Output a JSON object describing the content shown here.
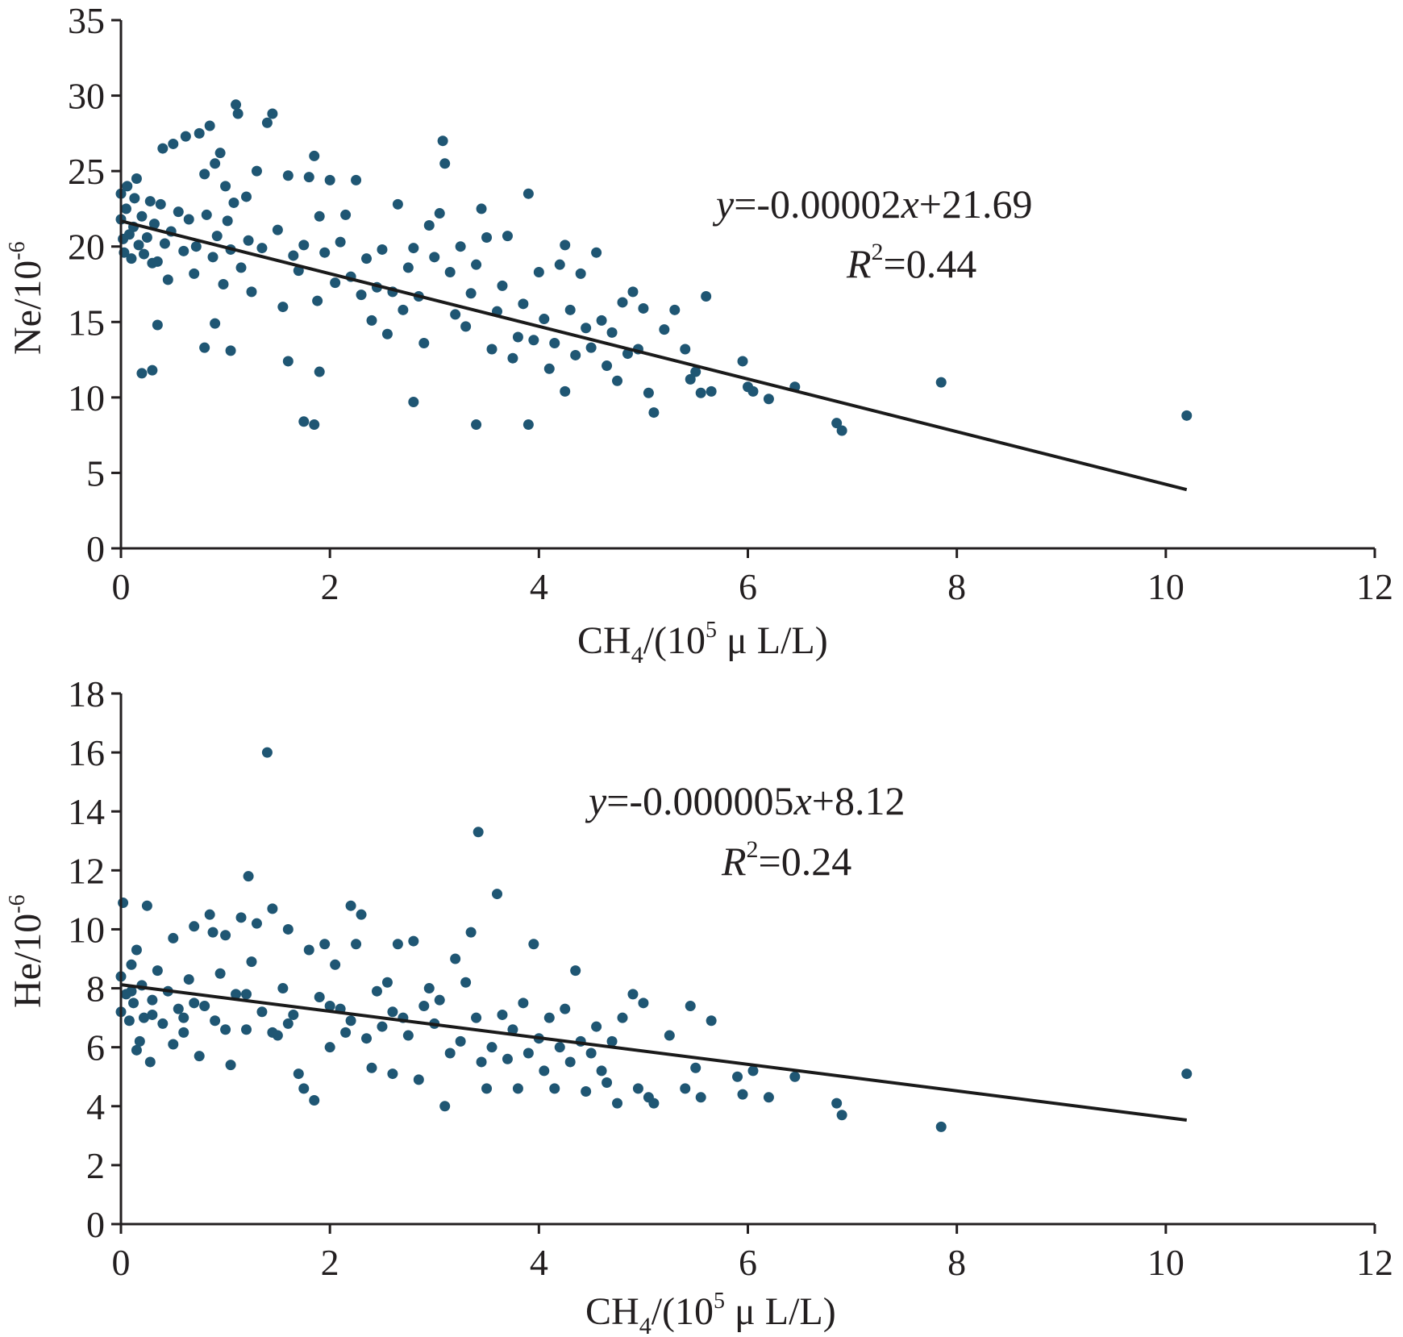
{
  "colors": {
    "points": "#1f5673",
    "axes": "#231f20",
    "fit_line": "#1a1a1a"
  },
  "chart_data": [
    {
      "type": "scatter",
      "xlabel": {
        "main": "CH",
        "sub": "4",
        "mid": "/(10",
        "sup": "5",
        "tail": " μ L/L)"
      },
      "ylabel": {
        "main": "Ne/10",
        "sup": "-6"
      },
      "xlim": [
        0,
        12
      ],
      "ylim": [
        0,
        35
      ],
      "xticks": [
        0,
        2,
        4,
        6,
        8,
        10,
        12
      ],
      "yticks": [
        0,
        5,
        10,
        15,
        20,
        25,
        30,
        35
      ],
      "grid": false,
      "fit": {
        "slope_per_1e5": -1.745,
        "intercept": 21.69,
        "x_end": 10.2
      },
      "equation": {
        "y": "y",
        "eq": "=-0.00002",
        "x": "x",
        "rest": "+21.69"
      },
      "r2": {
        "r": "R",
        "sup": "2",
        "rest": "=0.44"
      },
      "points": [
        [
          0.0,
          23.5
        ],
        [
          0.0,
          21.8
        ],
        [
          0.02,
          20.5
        ],
        [
          0.03,
          19.6
        ],
        [
          0.05,
          22.5
        ],
        [
          0.06,
          24.0
        ],
        [
          0.08,
          20.8
        ],
        [
          0.1,
          19.2
        ],
        [
          0.12,
          21.3
        ],
        [
          0.13,
          23.2
        ],
        [
          0.15,
          24.5
        ],
        [
          0.17,
          20.1
        ],
        [
          0.2,
          22.0
        ],
        [
          0.22,
          19.5
        ],
        [
          0.25,
          20.6
        ],
        [
          0.28,
          23.0
        ],
        [
          0.3,
          18.9
        ],
        [
          0.32,
          21.5
        ],
        [
          0.35,
          19.0
        ],
        [
          0.38,
          22.8
        ],
        [
          0.4,
          26.5
        ],
        [
          0.42,
          20.2
        ],
        [
          0.45,
          17.8
        ],
        [
          0.48,
          21.0
        ],
        [
          0.5,
          26.8
        ],
        [
          0.55,
          22.3
        ],
        [
          0.6,
          19.7
        ],
        [
          0.62,
          27.3
        ],
        [
          0.65,
          21.8
        ],
        [
          0.7,
          18.2
        ],
        [
          0.72,
          20.0
        ],
        [
          0.75,
          27.5
        ],
        [
          0.8,
          24.8
        ],
        [
          0.82,
          22.1
        ],
        [
          0.85,
          28.0
        ],
        [
          0.88,
          19.3
        ],
        [
          0.9,
          25.5
        ],
        [
          0.92,
          20.7
        ],
        [
          0.95,
          26.2
        ],
        [
          0.98,
          17.5
        ],
        [
          1.0,
          24.0
        ],
        [
          1.02,
          21.7
        ],
        [
          1.05,
          19.8
        ],
        [
          1.08,
          22.9
        ],
        [
          1.1,
          29.4
        ],
        [
          1.12,
          28.8
        ],
        [
          1.15,
          18.6
        ],
        [
          1.2,
          23.3
        ],
        [
          1.22,
          20.4
        ],
        [
          1.25,
          17.0
        ],
        [
          1.3,
          25.0
        ],
        [
          1.35,
          19.9
        ],
        [
          1.4,
          28.2
        ],
        [
          1.45,
          28.8
        ],
        [
          1.5,
          21.1
        ],
        [
          1.55,
          16.0
        ],
        [
          1.6,
          24.7
        ],
        [
          1.65,
          19.4
        ],
        [
          1.7,
          18.4
        ],
        [
          1.75,
          20.1
        ],
        [
          1.8,
          24.6
        ],
        [
          1.85,
          26.0
        ],
        [
          1.88,
          16.4
        ],
        [
          1.9,
          22.0
        ],
        [
          1.95,
          19.6
        ],
        [
          2.0,
          24.4
        ],
        [
          2.05,
          17.6
        ],
        [
          2.1,
          20.3
        ],
        [
          2.15,
          22.1
        ],
        [
          2.2,
          18.0
        ],
        [
          2.25,
          24.4
        ],
        [
          2.3,
          16.8
        ],
        [
          2.35,
          19.2
        ],
        [
          2.4,
          15.1
        ],
        [
          2.45,
          17.3
        ],
        [
          2.5,
          19.8
        ],
        [
          2.55,
          14.2
        ],
        [
          2.6,
          17.0
        ],
        [
          2.65,
          22.8
        ],
        [
          2.7,
          15.8
        ],
        [
          2.75,
          18.6
        ],
        [
          2.8,
          19.9
        ],
        [
          2.85,
          16.7
        ],
        [
          2.9,
          13.6
        ],
        [
          2.95,
          21.4
        ],
        [
          3.0,
          19.3
        ],
        [
          3.05,
          22.2
        ],
        [
          3.08,
          27.0
        ],
        [
          3.1,
          25.5
        ],
        [
          3.15,
          18.3
        ],
        [
          3.2,
          15.5
        ],
        [
          3.25,
          20.0
        ],
        [
          3.3,
          14.7
        ],
        [
          3.35,
          16.9
        ],
        [
          3.4,
          18.8
        ],
        [
          3.45,
          22.5
        ],
        [
          3.5,
          20.6
        ],
        [
          3.55,
          13.2
        ],
        [
          3.6,
          15.7
        ],
        [
          3.65,
          17.4
        ],
        [
          3.7,
          20.7
        ],
        [
          3.75,
          12.6
        ],
        [
          3.8,
          14.0
        ],
        [
          3.85,
          16.2
        ],
        [
          3.9,
          23.5
        ],
        [
          3.95,
          13.8
        ],
        [
          4.0,
          18.3
        ],
        [
          4.05,
          15.2
        ],
        [
          4.1,
          11.9
        ],
        [
          4.15,
          13.6
        ],
        [
          4.2,
          18.8
        ],
        [
          4.25,
          20.1
        ],
        [
          4.3,
          15.8
        ],
        [
          4.35,
          12.8
        ],
        [
          4.4,
          18.2
        ],
        [
          4.45,
          14.6
        ],
        [
          4.5,
          13.3
        ],
        [
          4.55,
          19.6
        ],
        [
          4.6,
          15.1
        ],
        [
          4.65,
          12.1
        ],
        [
          4.7,
          14.3
        ],
        [
          4.75,
          11.1
        ],
        [
          4.8,
          16.3
        ],
        [
          4.85,
          12.9
        ],
        [
          4.9,
          17.0
        ],
        [
          4.95,
          13.2
        ],
        [
          5.0,
          15.9
        ],
        [
          5.05,
          10.3
        ],
        [
          5.1,
          9.0
        ],
        [
          5.2,
          14.5
        ],
        [
          5.3,
          15.8
        ],
        [
          5.4,
          13.2
        ],
        [
          5.45,
          11.2
        ],
        [
          5.5,
          11.7
        ],
        [
          5.55,
          10.3
        ],
        [
          5.6,
          16.7
        ],
        [
          5.65,
          10.4
        ],
        [
          5.95,
          12.4
        ],
        [
          6.0,
          10.7
        ],
        [
          6.05,
          10.4
        ],
        [
          6.2,
          9.9
        ],
        [
          6.45,
          10.7
        ],
        [
          6.85,
          8.3
        ],
        [
          6.9,
          7.8
        ],
        [
          7.85,
          11.0
        ],
        [
          10.2,
          8.8
        ],
        [
          0.2,
          11.6
        ],
        [
          0.3,
          11.8
        ],
        [
          1.6,
          12.4
        ],
        [
          1.75,
          8.4
        ],
        [
          1.85,
          8.2
        ],
        [
          1.9,
          11.7
        ],
        [
          2.8,
          9.7
        ],
        [
          3.4,
          8.2
        ],
        [
          3.9,
          8.2
        ],
        [
          4.25,
          10.4
        ],
        [
          0.8,
          13.3
        ],
        [
          1.05,
          13.1
        ],
        [
          0.35,
          14.8
        ],
        [
          0.9,
          14.9
        ]
      ]
    },
    {
      "type": "scatter",
      "xlabel": {
        "main": "CH",
        "sub": "4",
        "mid": "/(10",
        "sup": "5",
        "tail": " μ L/L)"
      },
      "ylabel": {
        "main": "He/10",
        "sup": "-6"
      },
      "xlim": [
        0,
        12
      ],
      "ylim": [
        0,
        18
      ],
      "xticks": [
        0,
        2,
        4,
        6,
        8,
        10,
        12
      ],
      "yticks": [
        0,
        2,
        4,
        6,
        8,
        10,
        12,
        14,
        16,
        18
      ],
      "grid": false,
      "fit": {
        "slope_per_1e5": -0.45,
        "intercept": 8.12,
        "x_end": 10.2
      },
      "equation": {
        "y": "y",
        "eq": "=-0.000005",
        "x": "x",
        "rest": "+8.12"
      },
      "r2": {
        "r": "R",
        "sup": "2",
        "rest": "=0.24"
      },
      "points": [
        [
          0.0,
          8.4
        ],
        [
          0.0,
          7.2
        ],
        [
          0.02,
          10.9
        ],
        [
          0.05,
          7.8
        ],
        [
          0.08,
          6.9
        ],
        [
          0.1,
          8.8
        ],
        [
          0.12,
          7.5
        ],
        [
          0.15,
          9.3
        ],
        [
          0.18,
          6.2
        ],
        [
          0.2,
          8.1
        ],
        [
          0.22,
          7.0
        ],
        [
          0.25,
          10.8
        ],
        [
          0.28,
          5.5
        ],
        [
          0.3,
          7.6
        ],
        [
          0.35,
          8.6
        ],
        [
          0.4,
          6.8
        ],
        [
          0.45,
          7.9
        ],
        [
          0.5,
          9.7
        ],
        [
          0.55,
          7.3
        ],
        [
          0.6,
          6.5
        ],
        [
          0.65,
          8.3
        ],
        [
          0.7,
          10.1
        ],
        [
          0.75,
          5.7
        ],
        [
          0.8,
          7.4
        ],
        [
          0.85,
          10.5
        ],
        [
          0.88,
          9.9
        ],
        [
          0.9,
          6.9
        ],
        [
          0.95,
          8.5
        ],
        [
          1.0,
          9.8
        ],
        [
          1.05,
          5.4
        ],
        [
          1.1,
          7.8
        ],
        [
          1.15,
          10.4
        ],
        [
          1.2,
          6.6
        ],
        [
          1.22,
          11.8
        ],
        [
          1.25,
          8.9
        ],
        [
          1.3,
          10.2
        ],
        [
          1.35,
          7.2
        ],
        [
          1.4,
          16.0
        ],
        [
          1.45,
          10.7
        ],
        [
          1.5,
          6.4
        ],
        [
          1.55,
          8.0
        ],
        [
          1.6,
          10.0
        ],
        [
          1.65,
          7.1
        ],
        [
          1.7,
          5.1
        ],
        [
          1.75,
          4.6
        ],
        [
          1.8,
          9.3
        ],
        [
          1.85,
          4.2
        ],
        [
          1.9,
          7.7
        ],
        [
          1.95,
          9.5
        ],
        [
          2.0,
          6.0
        ],
        [
          2.05,
          8.8
        ],
        [
          2.1,
          7.3
        ],
        [
          2.15,
          6.5
        ],
        [
          2.2,
          10.8
        ],
        [
          2.25,
          9.5
        ],
        [
          2.3,
          10.5
        ],
        [
          2.35,
          6.3
        ],
        [
          2.4,
          5.3
        ],
        [
          2.45,
          7.9
        ],
        [
          2.5,
          6.7
        ],
        [
          2.55,
          8.2
        ],
        [
          2.6,
          5.1
        ],
        [
          2.65,
          9.5
        ],
        [
          2.7,
          7.0
        ],
        [
          2.75,
          6.4
        ],
        [
          2.8,
          9.6
        ],
        [
          2.85,
          4.9
        ],
        [
          2.9,
          7.4
        ],
        [
          2.95,
          8.0
        ],
        [
          3.0,
          6.8
        ],
        [
          3.05,
          7.6
        ],
        [
          3.1,
          4.0
        ],
        [
          3.15,
          5.8
        ],
        [
          3.2,
          9.0
        ],
        [
          3.25,
          6.2
        ],
        [
          3.3,
          8.2
        ],
        [
          3.35,
          9.9
        ],
        [
          3.4,
          7.0
        ],
        [
          3.42,
          13.3
        ],
        [
          3.45,
          5.5
        ],
        [
          3.5,
          4.6
        ],
        [
          3.55,
          6.0
        ],
        [
          3.6,
          11.2
        ],
        [
          3.65,
          7.1
        ],
        [
          3.7,
          5.6
        ],
        [
          3.75,
          6.6
        ],
        [
          3.8,
          4.6
        ],
        [
          3.85,
          7.5
        ],
        [
          3.9,
          5.8
        ],
        [
          3.95,
          9.5
        ],
        [
          4.0,
          6.3
        ],
        [
          4.05,
          5.2
        ],
        [
          4.1,
          7.0
        ],
        [
          4.15,
          4.6
        ],
        [
          4.2,
          6.0
        ],
        [
          4.25,
          7.3
        ],
        [
          4.3,
          5.5
        ],
        [
          4.35,
          8.6
        ],
        [
          4.4,
          6.2
        ],
        [
          4.45,
          4.5
        ],
        [
          4.5,
          5.8
        ],
        [
          4.55,
          6.7
        ],
        [
          4.6,
          5.2
        ],
        [
          4.65,
          4.8
        ],
        [
          4.7,
          6.2
        ],
        [
          4.75,
          4.1
        ],
        [
          4.8,
          7.0
        ],
        [
          4.9,
          7.8
        ],
        [
          4.95,
          4.6
        ],
        [
          5.0,
          7.5
        ],
        [
          5.05,
          4.3
        ],
        [
          5.1,
          4.1
        ],
        [
          5.25,
          6.4
        ],
        [
          5.4,
          4.6
        ],
        [
          5.45,
          7.4
        ],
        [
          5.5,
          5.3
        ],
        [
          5.55,
          4.3
        ],
        [
          5.65,
          6.9
        ],
        [
          5.9,
          5.0
        ],
        [
          5.95,
          4.4
        ],
        [
          6.05,
          5.2
        ],
        [
          6.2,
          4.3
        ],
        [
          6.45,
          5.0
        ],
        [
          6.85,
          4.1
        ],
        [
          6.9,
          3.7
        ],
        [
          7.85,
          3.3
        ],
        [
          10.2,
          5.1
        ],
        [
          0.15,
          5.9
        ],
        [
          0.5,
          6.1
        ],
        [
          1.0,
          6.6
        ],
        [
          1.45,
          6.5
        ],
        [
          0.1,
          7.9
        ],
        [
          0.3,
          7.1
        ],
        [
          0.6,
          7.0
        ],
        [
          0.7,
          7.5
        ],
        [
          1.2,
          7.8
        ],
        [
          1.6,
          6.8
        ],
        [
          2.0,
          7.4
        ],
        [
          2.2,
          6.9
        ],
        [
          2.6,
          7.2
        ]
      ]
    }
  ]
}
